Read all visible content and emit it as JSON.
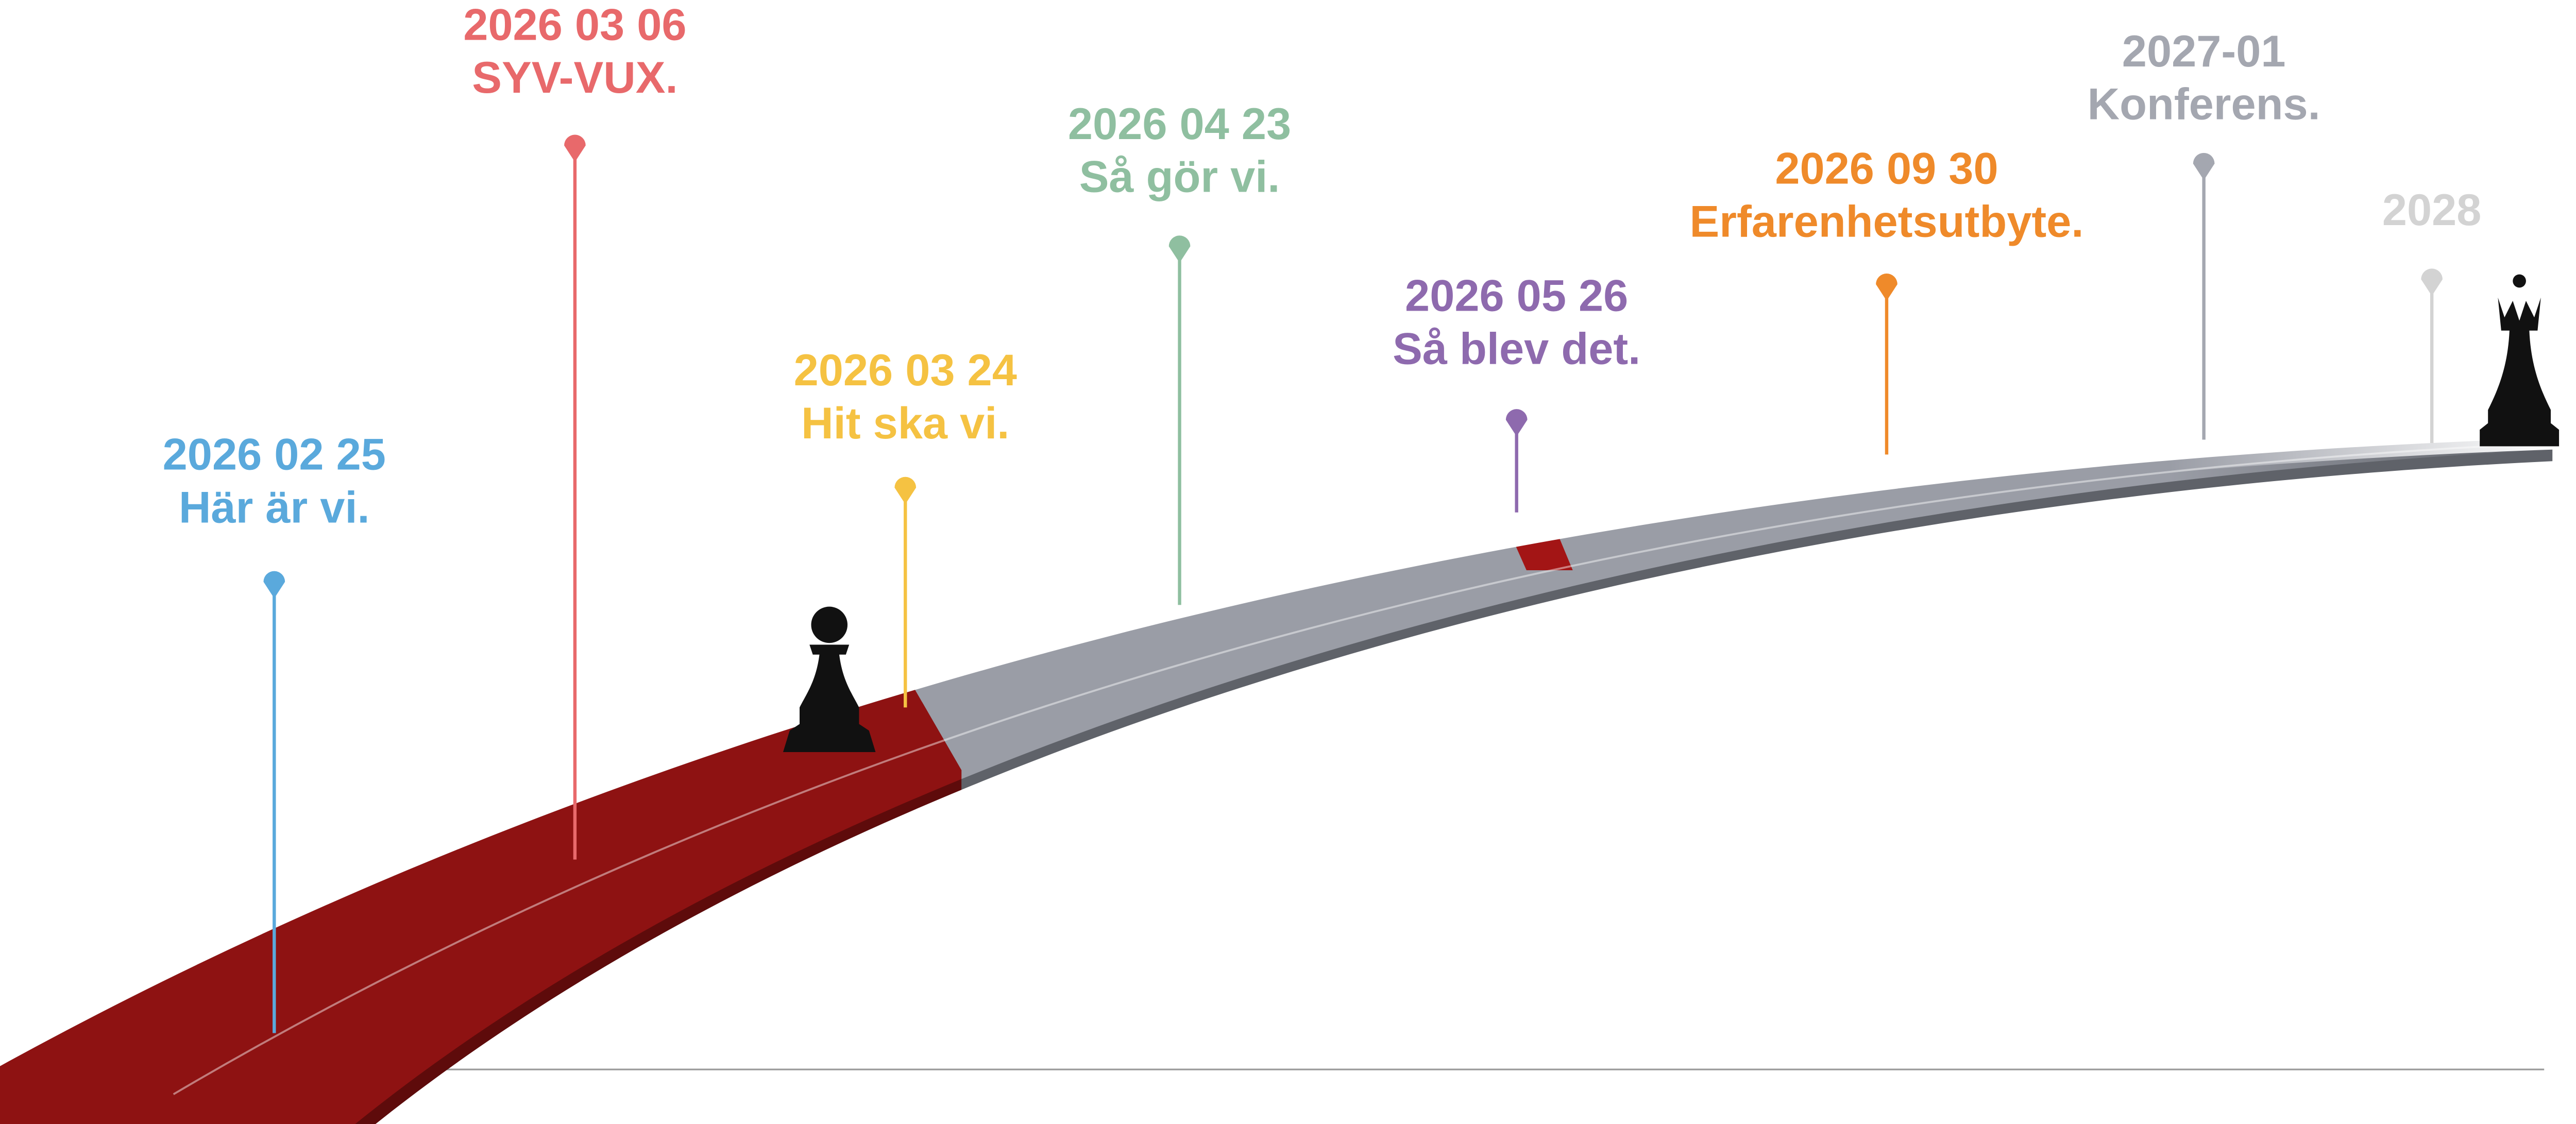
{
  "milestones": [
    {
      "date": "2026 02 25",
      "label": "Här är vi.",
      "color": "#5aa9dc"
    },
    {
      "date": "2026 03 06",
      "label": "SYV-VUX.",
      "color": "#e8696b"
    },
    {
      "date": "2026 03 24",
      "label": "Hit ska vi.",
      "color": "#f5c242"
    },
    {
      "date": "2026 04 23",
      "label": "Så gör vi.",
      "color": "#8fbfa0"
    },
    {
      "date": "2026 05 26",
      "label": "Så blev det.",
      "color": "#8e6aae"
    },
    {
      "date": "2026 09 30",
      "label": "Erfarenhetsutbyte.",
      "color": "#ef8a2a"
    },
    {
      "date": "2027-01",
      "label": "Konferens.",
      "color": "#a4a7b0"
    },
    {
      "date": "2028",
      "color": "#d3d3d3"
    }
  ]
}
